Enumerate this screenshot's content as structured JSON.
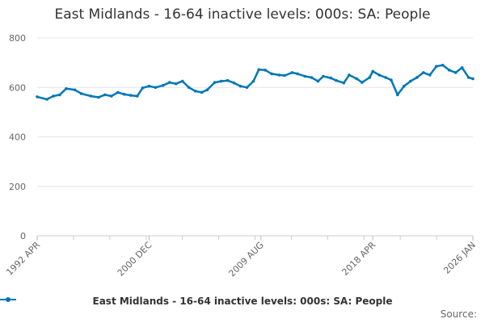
{
  "chart_data": {
    "type": "line",
    "title": "East Midlands - 16-64 inactive levels: 000s: SA: People",
    "xlabel": "",
    "ylabel": "",
    "x_range": [
      "1992-04",
      "2026-01"
    ],
    "x_tick_labels": [
      "1992 APR",
      "2000 DEC",
      "2009 AUG",
      "2018 APR",
      "2026 JAN"
    ],
    "x_tick_values": [
      "1992-04",
      "2000-12",
      "2009-08",
      "2018-04",
      "2026-01"
    ],
    "ylim": [
      0,
      800
    ],
    "y_ticks": [
      0,
      200,
      400,
      600,
      800
    ],
    "grid": true,
    "legend_position": "bottom",
    "line_color": "#0077b6",
    "series": [
      {
        "name": "East Midlands - 16-64 inactive levels: 000s: SA: People",
        "x": [
          "1992-04",
          "1993-01",
          "1993-07",
          "1994-01",
          "1994-07",
          "1995-03",
          "1995-09",
          "1996-06",
          "1997-01",
          "1997-07",
          "1998-01",
          "1998-07",
          "1999-01",
          "1999-07",
          "2000-01",
          "2000-06",
          "2000-12",
          "2001-06",
          "2002-01",
          "2002-07",
          "2003-01",
          "2003-07",
          "2004-01",
          "2004-07",
          "2005-01",
          "2005-06",
          "2006-01",
          "2006-07",
          "2007-01",
          "2007-07",
          "2008-01",
          "2008-07",
          "2009-01",
          "2009-06",
          "2009-12",
          "2010-06",
          "2011-01",
          "2011-06",
          "2012-01",
          "2012-06",
          "2013-01",
          "2013-07",
          "2014-01",
          "2014-06",
          "2015-01",
          "2015-06",
          "2016-01",
          "2016-06",
          "2017-01",
          "2017-06",
          "2018-01",
          "2018-04",
          "2018-10",
          "2019-04",
          "2019-09",
          "2020-03",
          "2020-09",
          "2021-03",
          "2021-09",
          "2022-03",
          "2022-09",
          "2023-03",
          "2023-09",
          "2024-03",
          "2024-09",
          "2025-03",
          "2025-09",
          "2026-01"
        ],
        "values": [
          562,
          552,
          565,
          570,
          595,
          590,
          575,
          565,
          560,
          570,
          565,
          580,
          572,
          568,
          565,
          598,
          605,
          600,
          608,
          620,
          615,
          625,
          600,
          585,
          580,
          590,
          620,
          625,
          628,
          618,
          605,
          600,
          625,
          672,
          670,
          655,
          650,
          648,
          660,
          655,
          645,
          640,
          625,
          645,
          638,
          628,
          618,
          650,
          635,
          620,
          640,
          665,
          650,
          640,
          630,
          570,
          605,
          625,
          640,
          660,
          650,
          685,
          690,
          670,
          660,
          680,
          640,
          635
        ]
      }
    ]
  },
  "source_label": "Source:"
}
